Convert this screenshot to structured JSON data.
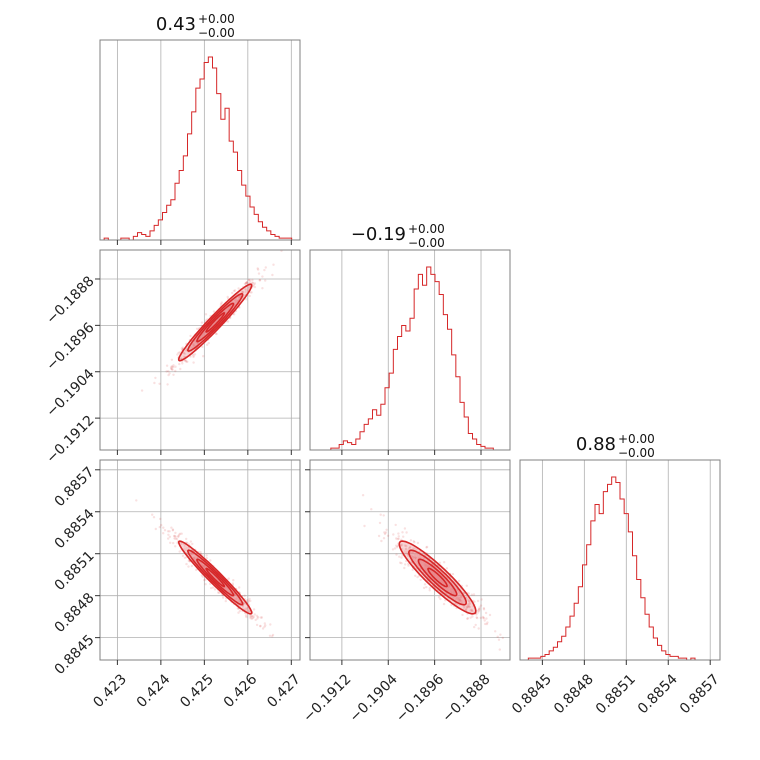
{
  "chart_data": {
    "type": "corner",
    "colors": {
      "main": "#d62728",
      "fill": "#e8868a",
      "frame": "#808080",
      "grid": "#b0b0b0"
    },
    "grid": true,
    "parameters": [
      {
        "title": {
          "value": "0.43",
          "plus": "+0.00",
          "minus": "−0.00"
        },
        "range": [
          0.4226,
          0.4272
        ],
        "ticks": [
          0.423,
          0.424,
          0.425,
          0.426,
          0.427
        ],
        "tick_labels": [
          "0.423",
          "0.424",
          "0.425",
          "0.426",
          "0.427"
        ],
        "mean": 0.42525,
        "sd": 0.00042,
        "hist_bins": 48,
        "hist_counts": [
          0,
          1,
          0,
          0,
          0,
          1,
          1,
          0,
          2,
          4,
          3,
          2,
          5,
          8,
          11,
          15,
          19,
          22,
          31,
          38,
          46,
          58,
          70,
          83,
          88,
          97,
          100,
          94,
          80,
          66,
          72,
          54,
          48,
          38,
          30,
          24,
          18,
          14,
          10,
          7,
          5,
          3,
          2,
          1,
          1,
          1,
          0,
          0
        ]
      },
      {
        "title": {
          "value": "−0.19",
          "plus": "+0.00",
          "minus": "−0.00"
        },
        "range": [
          -0.19175,
          -0.1883
        ],
        "ticks": [
          -0.1912,
          -0.1904,
          -0.1896,
          -0.1888
        ],
        "tick_labels": [
          "−0.1912",
          "−0.1904",
          "−0.1896",
          "−0.1888"
        ],
        "mean": -0.18955,
        "sd": 0.00033,
        "hist_bins": 48,
        "hist_counts": [
          0,
          0,
          0,
          0,
          0,
          1,
          1,
          3,
          5,
          4,
          3,
          6,
          10,
          14,
          17,
          22,
          19,
          25,
          34,
          42,
          55,
          62,
          68,
          65,
          72,
          88,
          96,
          90,
          100,
          96,
          92,
          85,
          74,
          66,
          52,
          40,
          26,
          18,
          9,
          6,
          3,
          2,
          1,
          1,
          0,
          0,
          0,
          0
        ]
      },
      {
        "title": {
          "value": "0.88",
          "plus": "+0.00",
          "minus": "−0.00"
        },
        "range": [
          0.88434,
          0.88577
        ],
        "ticks": [
          0.8845,
          0.8848,
          0.8851,
          0.8854,
          0.8857
        ],
        "tick_labels": [
          "0.8845",
          "0.8848",
          "0.8851",
          "0.8854",
          "0.8857"
        ],
        "mean": 0.88493,
        "sd": 0.00013,
        "hist_bins": 48,
        "hist_counts": [
          0,
          0,
          1,
          1,
          1,
          2,
          3,
          5,
          7,
          10,
          13,
          18,
          24,
          31,
          40,
          52,
          63,
          76,
          85,
          80,
          92,
          96,
          100,
          97,
          88,
          80,
          70,
          57,
          44,
          34,
          25,
          18,
          12,
          8,
          5,
          3,
          2,
          2,
          1,
          1,
          0,
          1,
          0,
          0,
          0,
          0,
          0,
          0
        ]
      }
    ],
    "pairs": [
      {
        "x": 0,
        "y": 1,
        "correlation": 0.97
      },
      {
        "x": 0,
        "y": 2,
        "correlation": -0.97
      },
      {
        "x": 1,
        "y": 2,
        "correlation": -0.92
      }
    ]
  }
}
